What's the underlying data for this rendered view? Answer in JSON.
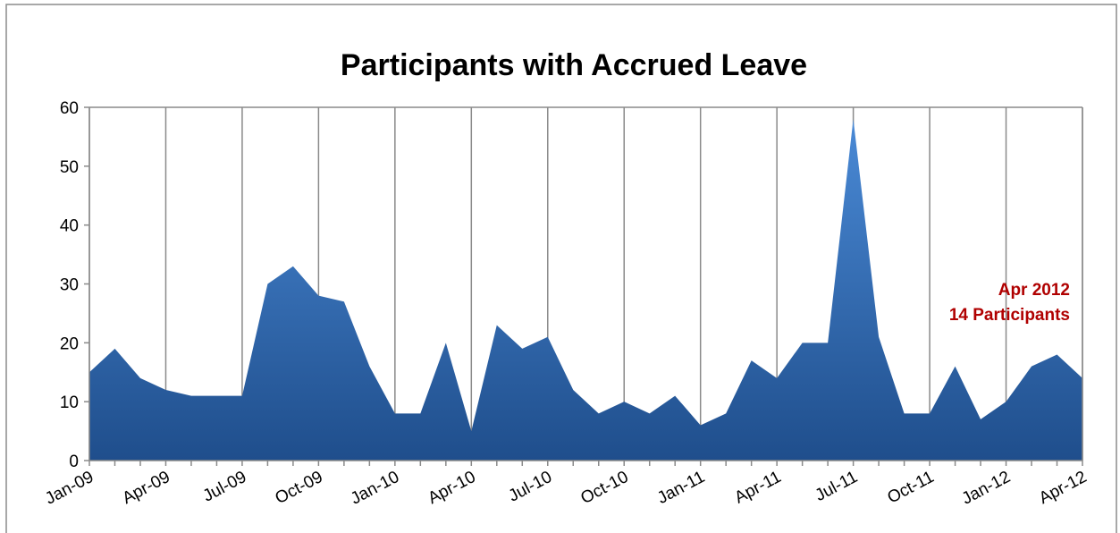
{
  "chart_data": {
    "type": "area",
    "title": "Participants with Accrued Leave",
    "categories": [
      "Jan-09",
      null,
      null,
      "Apr-09",
      null,
      null,
      "Jul-09",
      null,
      null,
      "Oct-09",
      null,
      null,
      "Jan-10",
      null,
      null,
      "Apr-10",
      null,
      null,
      "Jul-10",
      null,
      null,
      "Oct-10",
      null,
      null,
      "Jan-11",
      null,
      null,
      "Apr-11",
      null,
      null,
      "Jul-11",
      null,
      null,
      "Oct-11",
      null,
      null,
      "Jan-12",
      null,
      null,
      "Apr-12"
    ],
    "series": [
      {
        "name": "Participants",
        "color": "#3a72b8",
        "values": [
          15,
          19,
          14,
          12,
          11,
          11,
          11,
          30,
          33,
          28,
          27,
          16,
          8,
          8,
          20,
          5,
          23,
          19,
          21,
          12,
          8,
          10,
          8,
          11,
          6,
          8,
          17,
          14,
          20,
          20,
          58,
          21,
          8,
          8,
          16,
          7,
          10,
          16,
          18,
          14
        ]
      }
    ],
    "ylim": [
      0,
      60
    ],
    "yticks": [
      0,
      10,
      20,
      30,
      40,
      50,
      60
    ],
    "grid": true,
    "annotation": [
      "Apr 2012",
      "14 Participants"
    ],
    "annotation_color": "#b00000"
  }
}
